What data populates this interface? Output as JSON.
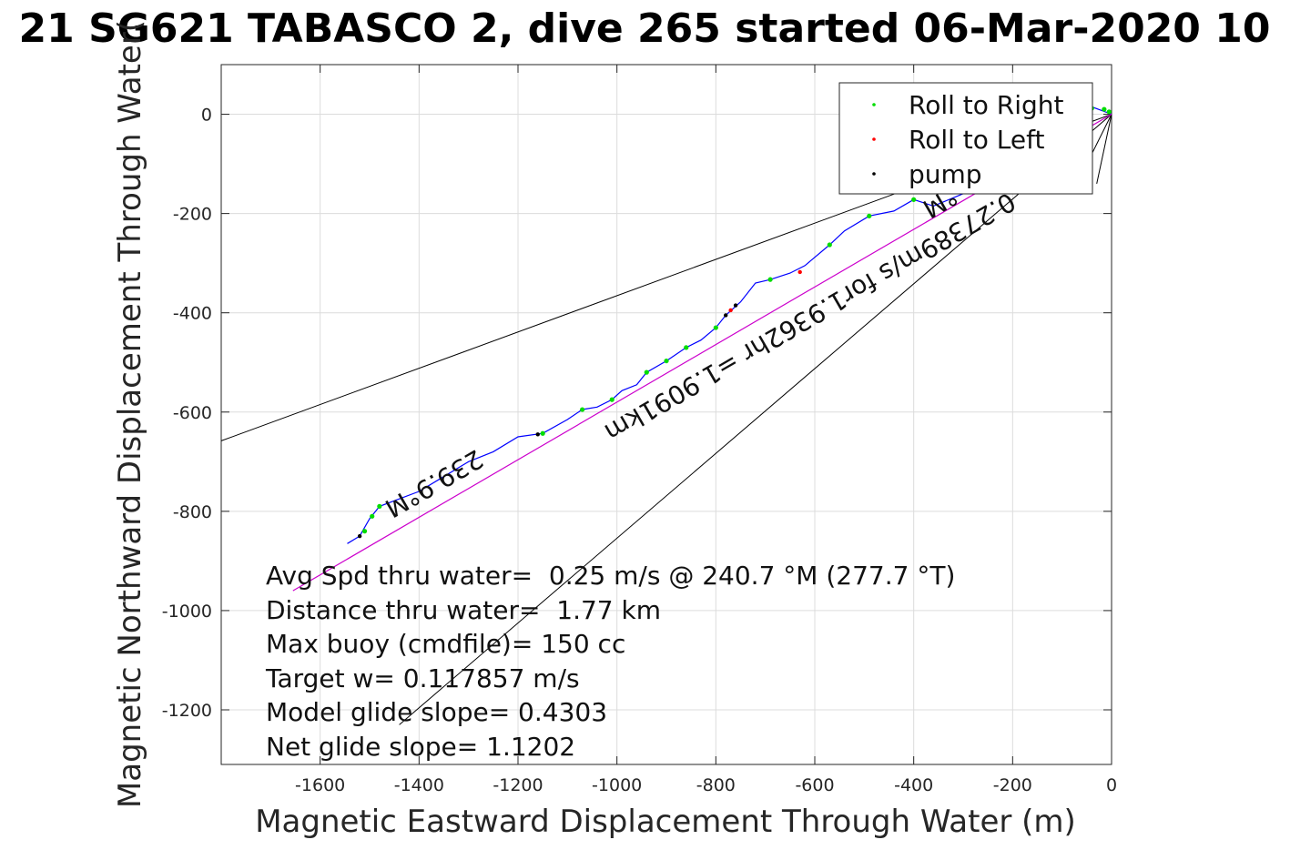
{
  "chart_data": {
    "type": "line",
    "title": "21 SG621 TABASCO 2, dive 265 started 06-Mar-2020 10",
    "xlabel": "Magnetic Eastward Displacement Through Water (m)",
    "ylabel": "Magnetic Northward Displacement Through Water(",
    "xlim": [
      -1800,
      0
    ],
    "ylim": [
      -1310,
      100
    ],
    "xticks": [
      -1600,
      -1400,
      -1200,
      -1000,
      -800,
      -600,
      -400,
      -200,
      0
    ],
    "yticks": [
      0,
      -200,
      -400,
      -600,
      -800,
      -1000,
      -1200
    ],
    "grid": true,
    "legend_position": "top-right",
    "legend": [
      {
        "label": "Roll to Right",
        "color": "#00dd00"
      },
      {
        "label": "Roll to Left",
        "color": "#ff0000"
      },
      {
        "label": "pump",
        "color": "#000000"
      }
    ],
    "series": [
      {
        "name": "track",
        "color": "#0000ff",
        "points": [
          [
            0,
            0
          ],
          [
            -40,
            15
          ],
          [
            -80,
            10
          ],
          [
            -140,
            -40
          ],
          [
            -220,
            -110
          ],
          [
            -300,
            -160
          ],
          [
            -360,
            -185
          ],
          [
            -400,
            -172
          ],
          [
            -440,
            -195
          ],
          [
            -490,
            -205
          ],
          [
            -540,
            -235
          ],
          [
            -570,
            -263
          ],
          [
            -620,
            -305
          ],
          [
            -650,
            -320
          ],
          [
            -690,
            -333
          ],
          [
            -720,
            -340
          ],
          [
            -750,
            -378
          ],
          [
            -780,
            -405
          ],
          [
            -800,
            -430
          ],
          [
            -830,
            -455
          ],
          [
            -860,
            -470
          ],
          [
            -900,
            -497
          ],
          [
            -940,
            -520
          ],
          [
            -960,
            -545
          ],
          [
            -990,
            -557
          ],
          [
            -1010,
            -575
          ],
          [
            -1040,
            -590
          ],
          [
            -1070,
            -595
          ],
          [
            -1100,
            -615
          ],
          [
            -1150,
            -643
          ],
          [
            -1200,
            -650
          ],
          [
            -1250,
            -680
          ],
          [
            -1300,
            -700
          ],
          [
            -1350,
            -730
          ],
          [
            -1400,
            -760
          ],
          [
            -1440,
            -775
          ],
          [
            -1480,
            -790
          ],
          [
            -1500,
            -815
          ],
          [
            -1520,
            -850
          ],
          [
            -1545,
            -865
          ]
        ]
      },
      {
        "name": "glide line",
        "color": "#cc00cc",
        "points": [
          [
            0,
            0
          ],
          [
            -1655,
            -960
          ]
        ]
      }
    ],
    "reference_lines": [
      [
        [
          0,
          0
        ],
        [
          -1800,
          -658
        ]
      ],
      [
        [
          0,
          0
        ],
        [
          -1440,
          -1230
        ]
      ],
      [
        [
          0,
          0
        ],
        [
          -60,
          -120
        ]
      ],
      [
        [
          0,
          0
        ],
        [
          -30,
          -140
        ]
      ]
    ],
    "roll_right_points": [
      [
        -15,
        10
      ],
      [
        -5,
        5
      ],
      [
        -40,
        12
      ],
      [
        -400,
        -172
      ],
      [
        -490,
        -205
      ],
      [
        -570,
        -263
      ],
      [
        -690,
        -333
      ],
      [
        -800,
        -430
      ],
      [
        -860,
        -470
      ],
      [
        -900,
        -497
      ],
      [
        -940,
        -520
      ],
      [
        -1010,
        -575
      ],
      [
        -1070,
        -595
      ],
      [
        -1150,
        -643
      ],
      [
        -1480,
        -790
      ],
      [
        -1495,
        -810
      ],
      [
        -1510,
        -840
      ]
    ],
    "roll_left_points": [
      [
        -630,
        -318
      ],
      [
        -770,
        -395
      ]
    ],
    "pump_points": [
      [
        -760,
        -385
      ],
      [
        -780,
        -405
      ],
      [
        -1160,
        -645
      ],
      [
        -1520,
        -850
      ]
    ],
    "annotations": [
      "Avg Spd thru water=  0.25 m/s @ 240.7 °M (277.7 °T)",
      "Distance thru water=  1.77 km",
      "Max buoy (cmdfile)= 150 cc",
      "Target w= 0.117857 m/s",
      "Model glide slope= 0.4303",
      "Net glide slope= 1.1202"
    ],
    "rotated_labels": [
      "239.9°M",
      "0.27389m/s for1.9362hr =1.9091km",
      "°M"
    ]
  }
}
